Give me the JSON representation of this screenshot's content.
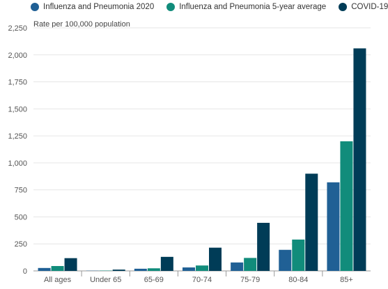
{
  "chart_data": {
    "type": "bar",
    "ylabel": "Rate per 100,000 population",
    "categories": [
      "All ages",
      "Under 65",
      "65-69",
      "70-74",
      "75-79",
      "80-84",
      "85+"
    ],
    "series": [
      {
        "name": "Influenza and Pneumonia 2020",
        "color": "#206095",
        "values": [
          27,
          2,
          20,
          32,
          78,
          195,
          820
        ]
      },
      {
        "name": "Influenza and Pneumonia 5-year average",
        "color": "#118c7b",
        "values": [
          45,
          3,
          24,
          50,
          120,
          290,
          1200
        ]
      },
      {
        "name": "COVID-19",
        "color": "#003c57",
        "values": [
          118,
          12,
          130,
          215,
          445,
          900,
          2060
        ]
      }
    ],
    "ylim": [
      0,
      2250
    ],
    "yticks": [
      0,
      250,
      500,
      750,
      1000,
      1250,
      1500,
      1750,
      2000,
      2250
    ],
    "ytick_labels": [
      "0",
      "250",
      "500",
      "750",
      "1,000",
      "1,250",
      "1,500",
      "1,750",
      "2,000",
      "2,250"
    ],
    "grid": true,
    "legend_position": "top"
  }
}
